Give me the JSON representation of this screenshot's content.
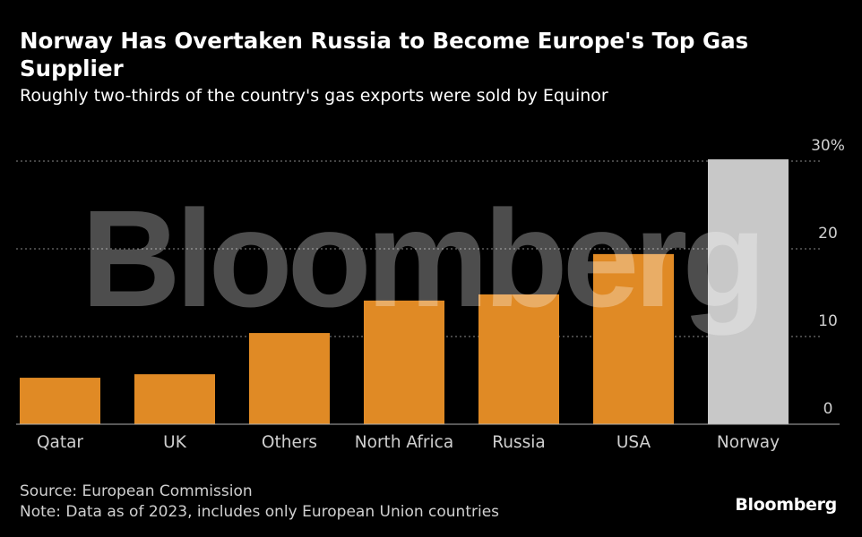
{
  "header": {
    "title": "Norway Has Overtaken Russia to Become Europe's Top Gas Supplier",
    "subtitle": "Roughly two-thirds of the country's gas exports were sold by Equinor"
  },
  "footer": {
    "source": "Source: European Commission",
    "note": "Note: Data as of 2023, includes only European Union countries",
    "brand": "Bloomberg"
  },
  "watermark": "Bloomberg",
  "colors": {
    "background": "#000000",
    "bar": "#e08a25",
    "highlight_bar": "#c8c8c8",
    "grid": "#8a8a8a",
    "text": "#ffffff",
    "tick_text": "#cfcfcf"
  },
  "chart_data": {
    "type": "bar",
    "title": "Norway Has Overtaken Russia to Become Europe's Top Gas Supplier",
    "subtitle": "Roughly two-thirds of the country's gas exports were sold by Equinor",
    "categories": [
      "Qatar",
      "UK",
      "Others",
      "North Africa",
      "Russia",
      "USA",
      "Norway"
    ],
    "values": [
      5.3,
      5.7,
      10.4,
      14.1,
      14.8,
      19.4,
      30.2
    ],
    "highlight": "Norway",
    "unit": "%",
    "yticks": [
      "0",
      "10",
      "20",
      "30%"
    ],
    "ytick_values": [
      0,
      10,
      20,
      30
    ],
    "ylim": [
      0,
      30
    ],
    "grid": true,
    "yaxis_position": "right",
    "xlabel": "",
    "ylabel": ""
  }
}
